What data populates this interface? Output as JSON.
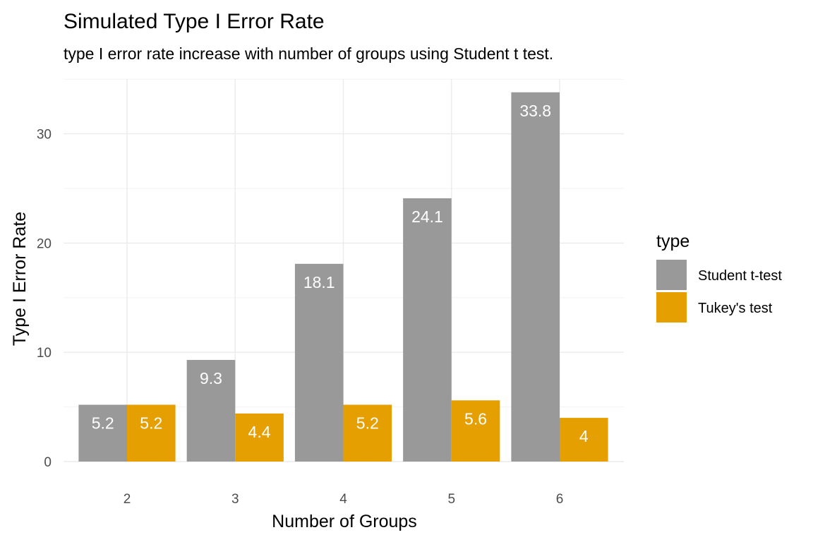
{
  "chart_data": {
    "type": "bar",
    "title": "Simulated Type I Error Rate",
    "subtitle": "type I error rate increase with number of groups using Student t test.",
    "xlabel": "Number of Groups",
    "ylabel": "Type I Error Rate",
    "categories": [
      "2",
      "3",
      "4",
      "5",
      "6"
    ],
    "series": [
      {
        "name": "Student t-test",
        "color": "#999999",
        "values": [
          5.2,
          9.3,
          18.1,
          24.1,
          33.8
        ],
        "labels": [
          "5.2",
          "9.3",
          "18.1",
          "24.1",
          "33.8"
        ]
      },
      {
        "name": "Tukey's test",
        "color": "#E69F00",
        "values": [
          5.2,
          4.4,
          5.2,
          5.6,
          4
        ],
        "labels": [
          "5.2",
          "4.4",
          "5.2",
          "5.6",
          "4"
        ]
      }
    ],
    "ylim": [
      0,
      35
    ],
    "yticks": [
      0,
      10,
      20,
      30
    ],
    "ytick_labels": [
      "0",
      "10",
      "20",
      "30"
    ],
    "grid": true,
    "legend": {
      "title": "type",
      "position": "right"
    }
  }
}
